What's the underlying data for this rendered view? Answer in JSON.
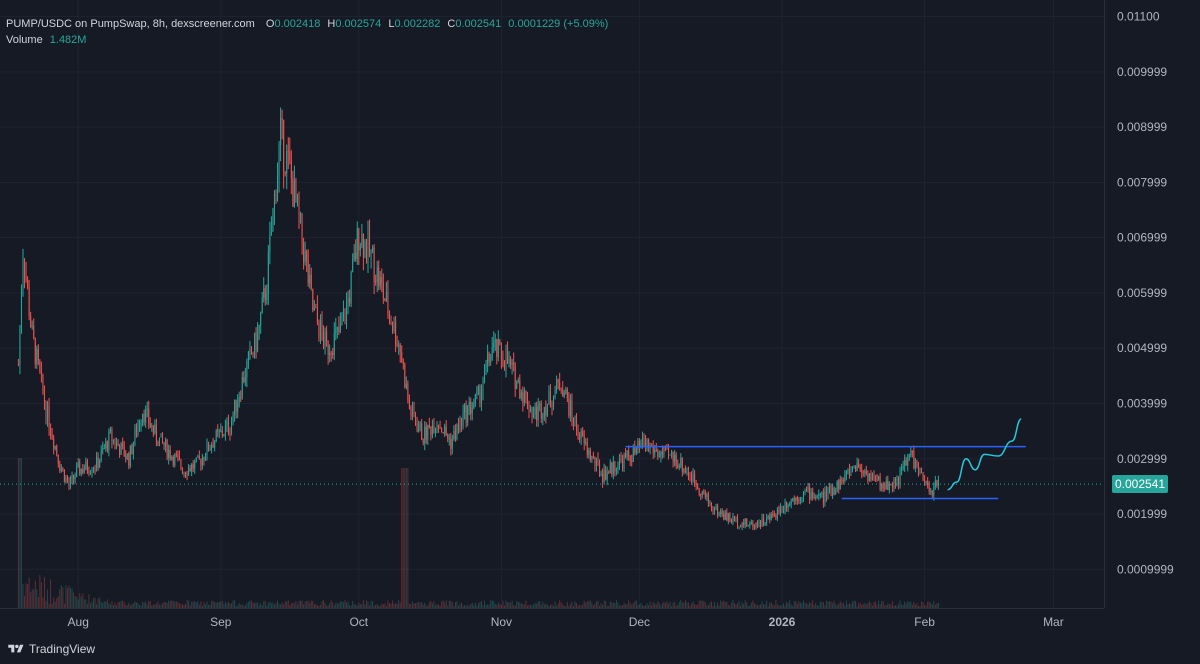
{
  "legend": {
    "title": "PUMP/USDC on PumpSwap, 8h, dexscreener.com",
    "o_label": "O",
    "o_value": "0.002418",
    "h_label": "H",
    "h_value": "0.002574",
    "l_label": "L",
    "l_value": "0.002282",
    "c_label": "C",
    "c_value": "0.002541",
    "change": "0.0001229 (+5.09%)",
    "volume_label": "Volume",
    "volume_value": "1.482M"
  },
  "last_price_label": "0.002541",
  "brand": {
    "name": "TradingView",
    "icon": "tradingview-logo-icon"
  },
  "colors": {
    "background": "#161a25",
    "grid": "#1f2330",
    "up": "#26a69a",
    "down": "#ef5350",
    "drawing_line": "#2962ff",
    "projection": "#26c6da",
    "text": "#d1d4dc"
  },
  "chart_data": {
    "type": "candlestick",
    "title": "PUMP/USDC on PumpSwap, 8h, dexscreener.com",
    "interval": "8h",
    "grid": true,
    "y_scale": "linear",
    "ylim": [
      0.0003,
      0.0113
    ],
    "y_ticks": [
      {
        "value": 0.011,
        "label": "0.01100"
      },
      {
        "value": 0.01,
        "label": "0.009999"
      },
      {
        "value": 0.009,
        "label": "0.008999"
      },
      {
        "value": 0.008,
        "label": "0.007999"
      },
      {
        "value": 0.007,
        "label": "0.006999"
      },
      {
        "value": 0.006,
        "label": "0.005999"
      },
      {
        "value": 0.005,
        "label": "0.004999"
      },
      {
        "value": 0.004,
        "label": "0.003999"
      },
      {
        "value": 0.003,
        "label": "0.002999"
      },
      {
        "value": 0.002,
        "label": "0.001999"
      },
      {
        "value": 0.001,
        "label": "0.0009999"
      }
    ],
    "xlim": [
      "2025-07-15",
      "2026-03-12"
    ],
    "x_ticks": [
      {
        "date": "2025-08-01",
        "label": "Aug",
        "bold": false
      },
      {
        "date": "2025-09-01",
        "label": "Sep",
        "bold": false
      },
      {
        "date": "2025-10-01",
        "label": "Oct",
        "bold": false
      },
      {
        "date": "2025-11-01",
        "label": "Nov",
        "bold": false
      },
      {
        "date": "2025-12-01",
        "label": "Dec",
        "bold": false
      },
      {
        "date": "2026-01-01",
        "label": "2026",
        "bold": true
      },
      {
        "date": "2026-02-01",
        "label": "Feb",
        "bold": false
      },
      {
        "date": "2026-03-01",
        "label": "Mar",
        "bold": false
      }
    ],
    "price_path": [
      [
        "2025-07-19",
        0.0047
      ],
      [
        "2025-07-20",
        0.0068
      ],
      [
        "2025-07-22",
        0.0052
      ],
      [
        "2025-07-25",
        0.0039
      ],
      [
        "2025-07-28",
        0.0029
      ],
      [
        "2025-07-30",
        0.0025
      ],
      [
        "2025-08-01",
        0.0028
      ],
      [
        "2025-08-05",
        0.0029
      ],
      [
        "2025-08-08",
        0.0034
      ],
      [
        "2025-08-12",
        0.003
      ],
      [
        "2025-08-15",
        0.0039
      ],
      [
        "2025-08-18",
        0.0034
      ],
      [
        "2025-08-21",
        0.0031
      ],
      [
        "2025-08-24",
        0.0028
      ],
      [
        "2025-08-27",
        0.0029
      ],
      [
        "2025-08-30",
        0.0033
      ],
      [
        "2025-09-03",
        0.0036
      ],
      [
        "2025-09-06",
        0.0045
      ],
      [
        "2025-09-09",
        0.0052
      ],
      [
        "2025-09-11",
        0.0062
      ],
      [
        "2025-09-13",
        0.008
      ],
      [
        "2025-09-14",
        0.0088
      ],
      [
        "2025-09-16",
        0.0082
      ],
      [
        "2025-09-19",
        0.0068
      ],
      [
        "2025-09-21",
        0.0057
      ],
      [
        "2025-09-24",
        0.005
      ],
      [
        "2025-09-27",
        0.0053
      ],
      [
        "2025-09-29",
        0.006
      ],
      [
        "2025-10-01",
        0.0071
      ],
      [
        "2025-10-04",
        0.0066
      ],
      [
        "2025-10-07",
        0.0058
      ],
      [
        "2025-10-10",
        0.005
      ],
      [
        "2025-10-12",
        0.0039
      ],
      [
        "2025-10-15",
        0.0034
      ],
      [
        "2025-10-18",
        0.0037
      ],
      [
        "2025-10-21",
        0.0033
      ],
      [
        "2025-10-24",
        0.0038
      ],
      [
        "2025-10-27",
        0.0041
      ],
      [
        "2025-10-30",
        0.005
      ],
      [
        "2025-11-02",
        0.0048
      ],
      [
        "2025-11-05",
        0.0043
      ],
      [
        "2025-11-08",
        0.0038
      ],
      [
        "2025-11-11",
        0.004
      ],
      [
        "2025-11-14",
        0.0044
      ],
      [
        "2025-11-17",
        0.0036
      ],
      [
        "2025-11-20",
        0.0031
      ],
      [
        "2025-11-23",
        0.0027
      ],
      [
        "2025-11-26",
        0.0029
      ],
      [
        "2025-11-30",
        0.0031
      ],
      [
        "2025-12-02",
        0.0033
      ],
      [
        "2025-12-05",
        0.0031
      ],
      [
        "2025-12-09",
        0.003
      ],
      [
        "2025-12-13",
        0.0026
      ],
      [
        "2025-12-17",
        0.0021
      ],
      [
        "2025-12-21",
        0.0019
      ],
      [
        "2025-12-25",
        0.0018
      ],
      [
        "2025-12-29",
        0.0019
      ],
      [
        "2026-01-02",
        0.0022
      ],
      [
        "2026-01-06",
        0.0024
      ],
      [
        "2026-01-10",
        0.0023
      ],
      [
        "2026-01-14",
        0.0026
      ],
      [
        "2026-01-17",
        0.0029
      ],
      [
        "2026-01-20",
        0.0027
      ],
      [
        "2026-01-23",
        0.0025
      ],
      [
        "2026-01-26",
        0.0026
      ],
      [
        "2026-01-29",
        0.0031
      ],
      [
        "2026-01-31",
        0.0027
      ],
      [
        "2026-02-02",
        0.0024
      ],
      [
        "2026-02-04",
        0.002541
      ]
    ],
    "volume": {
      "label": "Volume",
      "notable_spikes": [
        {
          "date": "2025-07-19",
          "value": "high"
        },
        {
          "date": "2025-10-12",
          "value": "high"
        }
      ]
    },
    "last_price": 0.002541,
    "drawings": [
      {
        "type": "horizontal-segment",
        "name": "resistance-line",
        "from": "2025-11-28",
        "to": "2026-02-23",
        "price": 0.00322
      },
      {
        "type": "horizontal-segment",
        "name": "support-line",
        "from": "2026-01-14",
        "to": "2026-02-17",
        "price": 0.00228
      },
      {
        "type": "projection-path",
        "name": "projected-path",
        "points": [
          [
            "2026-02-06",
            0.00244
          ],
          [
            "2026-02-08",
            0.00258
          ],
          [
            "2026-02-10",
            0.003
          ],
          [
            "2026-02-12",
            0.0028
          ],
          [
            "2026-02-14",
            0.00308
          ],
          [
            "2026-02-17",
            0.00305
          ],
          [
            "2026-02-20",
            0.00332
          ],
          [
            "2026-02-22",
            0.00372
          ]
        ]
      }
    ]
  }
}
